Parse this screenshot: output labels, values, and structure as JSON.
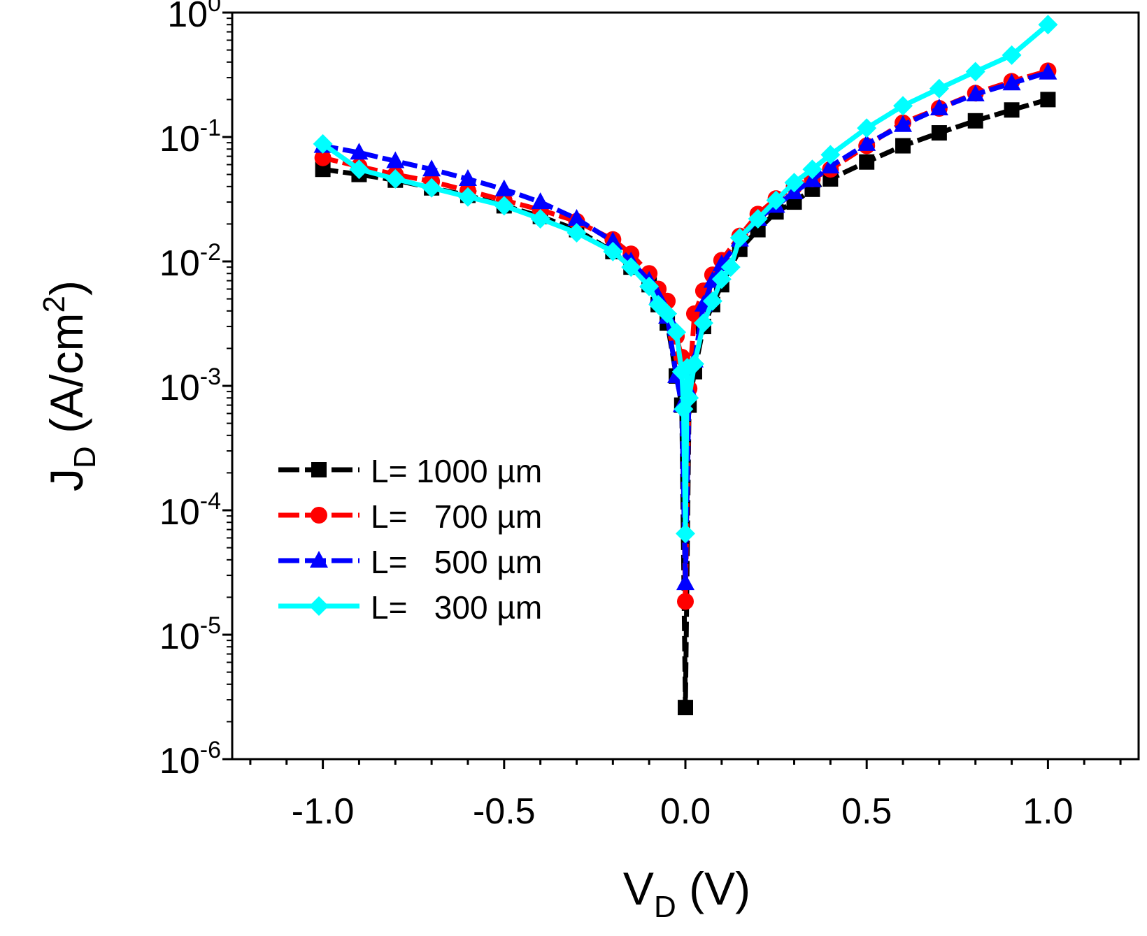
{
  "chart_data": {
    "type": "line",
    "xlabel": {
      "main": "V",
      "sub": "D",
      "unit": " (V)"
    },
    "ylabel": {
      "main": "J",
      "sub": "D",
      "unit_pre": " (A/cm",
      "unit_sup": "2",
      "unit_post": ")"
    },
    "xlim": [
      -1.25,
      1.25
    ],
    "ylim_log10": [
      -6,
      0
    ],
    "yscale": "log",
    "grid": false,
    "legend_position": "middle-left",
    "x_ticks": [
      {
        "value": -1.0,
        "label": "-1.0"
      },
      {
        "value": -0.5,
        "label": "-0.5"
      },
      {
        "value": 0.0,
        "label": "0.0"
      },
      {
        "value": 0.5,
        "label": "0.5"
      },
      {
        "value": 1.0,
        "label": "1.0"
      }
    ],
    "y_ticks": [
      {
        "exp": 0,
        "base": "10",
        "sup": "0"
      },
      {
        "exp": -1,
        "base": "10",
        "sup": "-1"
      },
      {
        "exp": -2,
        "base": "10",
        "sup": "-2"
      },
      {
        "exp": -3,
        "base": "10",
        "sup": "-3"
      },
      {
        "exp": -4,
        "base": "10",
        "sup": "-4"
      },
      {
        "exp": -5,
        "base": "10",
        "sup": "-5"
      },
      {
        "exp": -6,
        "base": "10",
        "sup": "-6"
      }
    ],
    "series": [
      {
        "name": "L= 1000 µm",
        "color": "#000000",
        "marker": "square",
        "points": [
          [
            -1.0,
            0.055
          ],
          [
            -0.9,
            0.05
          ],
          [
            -0.8,
            0.045
          ],
          [
            -0.7,
            0.039
          ],
          [
            -0.6,
            0.034
          ],
          [
            -0.5,
            0.028
          ],
          [
            -0.4,
            0.023
          ],
          [
            -0.3,
            0.018
          ],
          [
            -0.2,
            0.012
          ],
          [
            -0.15,
            0.009
          ],
          [
            -0.1,
            0.0065
          ],
          [
            -0.075,
            0.0045
          ],
          [
            -0.05,
            0.0032
          ],
          [
            -0.025,
            0.0012
          ],
          [
            -0.01,
            0.0007
          ],
          [
            0.0,
            2.6e-06
          ],
          [
            0.01,
            0.0007
          ],
          [
            0.025,
            0.0013
          ],
          [
            0.05,
            0.003
          ],
          [
            0.075,
            0.0045
          ],
          [
            0.1,
            0.0065
          ],
          [
            0.15,
            0.0125
          ],
          [
            0.2,
            0.018
          ],
          [
            0.25,
            0.025
          ],
          [
            0.3,
            0.03
          ],
          [
            0.35,
            0.038
          ],
          [
            0.4,
            0.046
          ],
          [
            0.5,
            0.063
          ],
          [
            0.6,
            0.085
          ],
          [
            0.7,
            0.108
          ],
          [
            0.8,
            0.135
          ],
          [
            0.9,
            0.165
          ],
          [
            1.0,
            0.2
          ]
        ]
      },
      {
        "name": "L=   700 µm",
        "color": "#ff0000",
        "marker": "circle",
        "points": [
          [
            -1.0,
            0.068
          ],
          [
            -0.9,
            0.058
          ],
          [
            -0.8,
            0.05
          ],
          [
            -0.7,
            0.044
          ],
          [
            -0.6,
            0.037
          ],
          [
            -0.5,
            0.031
          ],
          [
            -0.4,
            0.026
          ],
          [
            -0.3,
            0.021
          ],
          [
            -0.2,
            0.015
          ],
          [
            -0.15,
            0.0115
          ],
          [
            -0.1,
            0.008
          ],
          [
            -0.075,
            0.006
          ],
          [
            -0.05,
            0.0048
          ],
          [
            -0.025,
            0.0025
          ],
          [
            -0.01,
            0.0017
          ],
          [
            0.0,
            1.85e-05
          ],
          [
            0.01,
            0.00095
          ],
          [
            0.025,
            0.0038
          ],
          [
            0.05,
            0.0058
          ],
          [
            0.075,
            0.0078
          ],
          [
            0.1,
            0.0102
          ],
          [
            0.15,
            0.016
          ],
          [
            0.2,
            0.024
          ],
          [
            0.25,
            0.032
          ],
          [
            0.3,
            0.04
          ],
          [
            0.35,
            0.046
          ],
          [
            0.4,
            0.055
          ],
          [
            0.5,
            0.085
          ],
          [
            0.6,
            0.13
          ],
          [
            0.7,
            0.17
          ],
          [
            0.8,
            0.225
          ],
          [
            0.9,
            0.28
          ],
          [
            1.0,
            0.34
          ]
        ]
      },
      {
        "name": "L=   500 µm",
        "color": "#0000ff",
        "marker": "triangle",
        "points": [
          [
            -1.0,
            0.085
          ],
          [
            -0.9,
            0.075
          ],
          [
            -0.8,
            0.064
          ],
          [
            -0.7,
            0.055
          ],
          [
            -0.6,
            0.046
          ],
          [
            -0.5,
            0.038
          ],
          [
            -0.4,
            0.03
          ],
          [
            -0.3,
            0.022
          ],
          [
            -0.2,
            0.0145
          ],
          [
            -0.15,
            0.01
          ],
          [
            -0.1,
            0.007
          ],
          [
            -0.075,
            0.0052
          ],
          [
            -0.05,
            0.0036
          ],
          [
            -0.025,
            0.0012
          ],
          [
            -0.01,
            0.0007
          ],
          [
            0.0,
            2.6e-05
          ],
          [
            0.01,
            0.0009
          ],
          [
            0.025,
            0.0016
          ],
          [
            0.05,
            0.0045
          ],
          [
            0.075,
            0.007
          ],
          [
            0.1,
            0.0095
          ],
          [
            0.15,
            0.015
          ],
          [
            0.2,
            0.022
          ],
          [
            0.25,
            0.028
          ],
          [
            0.3,
            0.036
          ],
          [
            0.35,
            0.045
          ],
          [
            0.4,
            0.058
          ],
          [
            0.5,
            0.088
          ],
          [
            0.6,
            0.125
          ],
          [
            0.7,
            0.17
          ],
          [
            0.8,
            0.22
          ],
          [
            0.9,
            0.27
          ],
          [
            1.0,
            0.33
          ]
        ]
      },
      {
        "name": "L=   300 µm",
        "color": "#00ffff",
        "marker": "diamond",
        "points": [
          [
            -1.0,
            0.088
          ],
          [
            -0.9,
            0.055
          ],
          [
            -0.8,
            0.046
          ],
          [
            -0.7,
            0.039
          ],
          [
            -0.6,
            0.033
          ],
          [
            -0.5,
            0.028
          ],
          [
            -0.4,
            0.022
          ],
          [
            -0.3,
            0.017
          ],
          [
            -0.2,
            0.012
          ],
          [
            -0.15,
            0.009
          ],
          [
            -0.1,
            0.0063
          ],
          [
            -0.075,
            0.0045
          ],
          [
            -0.05,
            0.0038
          ],
          [
            -0.025,
            0.0027
          ],
          [
            -0.01,
            0.0013
          ],
          [
            -0.005,
            0.00065
          ],
          [
            0.0,
            6.5e-05
          ],
          [
            0.005,
            0.0014
          ],
          [
            0.01,
            0.0008
          ],
          [
            0.025,
            0.0015
          ],
          [
            0.05,
            0.0032
          ],
          [
            0.075,
            0.0048
          ],
          [
            0.1,
            0.0072
          ],
          [
            0.125,
            0.009
          ],
          [
            0.15,
            0.0155
          ],
          [
            0.2,
            0.022
          ],
          [
            0.25,
            0.031
          ],
          [
            0.3,
            0.043
          ],
          [
            0.35,
            0.055
          ],
          [
            0.4,
            0.072
          ],
          [
            0.5,
            0.118
          ],
          [
            0.6,
            0.178
          ],
          [
            0.7,
            0.245
          ],
          [
            0.8,
            0.335
          ],
          [
            0.9,
            0.455
          ],
          [
            1.0,
            0.8
          ]
        ]
      }
    ]
  }
}
